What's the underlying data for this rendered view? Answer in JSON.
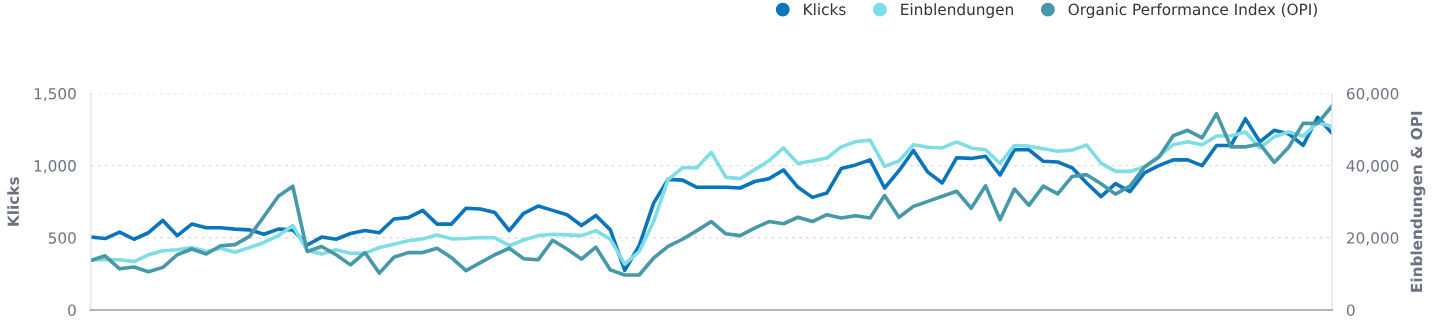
{
  "chart_data": {
    "type": "line",
    "ylabel": "Klicks",
    "y2label": "Einblendungen & OPI",
    "categories": [
      null,
      null,
      null,
      null,
      null,
      null,
      null,
      null,
      null,
      null,
      null,
      null,
      null,
      null,
      null,
      null,
      null,
      null,
      null,
      null,
      null,
      null,
      null,
      null,
      null,
      null,
      null,
      null,
      null,
      null,
      null,
      null,
      null,
      null,
      null,
      null,
      null,
      null,
      null,
      null,
      null,
      null,
      null,
      null,
      null,
      null,
      null,
      null,
      null,
      null,
      null,
      null,
      null,
      null,
      null,
      null,
      null,
      null,
      null,
      null,
      null,
      null,
      null,
      null,
      null,
      null,
      null,
      null,
      null,
      null,
      null,
      null,
      null,
      null,
      null,
      null,
      null,
      null,
      null,
      null,
      null,
      null,
      null,
      null,
      null,
      null,
      null
    ],
    "series": [
      {
        "name": "Klicks",
        "color": "#0a75bd",
        "values": [
          505,
          495,
          540,
          490,
          535,
          620,
          515,
          595,
          570,
          570,
          560,
          555,
          525,
          560,
          555,
          450,
          505,
          490,
          530,
          550,
          535,
          630,
          640,
          690,
          595,
          595,
          705,
          700,
          675,
          550,
          670,
          720,
          690,
          660,
          585,
          655,
          555,
          275,
          445,
          740,
          905,
          900,
          850,
          850,
          850,
          845,
          890,
          910,
          970,
          850,
          780,
          810,
          980,
          1005,
          1040,
          845,
          965,
          1105,
          955,
          880,
          1055,
          1050,
          1065,
          935,
          1110,
          1110,
          1030,
          1025,
          985,
          880,
          785,
          875,
          820,
          950,
          1000,
          1040,
          1040,
          1000,
          1140,
          1140,
          1325,
          1165,
          1245,
          1220,
          1140,
          1335,
          1225
        ]
      },
      {
        "name": "Einblendungen",
        "color": "#7fdde6",
        "axis": "y2",
        "values": [
          13900,
          13900,
          13900,
          13400,
          15300,
          16400,
          16700,
          17300,
          16200,
          17100,
          16000,
          17300,
          18700,
          20600,
          23400,
          16500,
          15500,
          16700,
          15700,
          15700,
          17300,
          18200,
          19200,
          19700,
          20800,
          19700,
          19800,
          20100,
          20000,
          17800,
          19400,
          20600,
          21000,
          20800,
          20600,
          22000,
          19600,
          12700,
          16200,
          24500,
          36100,
          39400,
          39400,
          43700,
          36800,
          36400,
          38900,
          41400,
          44900,
          40600,
          41300,
          42100,
          45200,
          46600,
          47100,
          39800,
          41300,
          45800,
          45100,
          44900,
          46600,
          44900,
          44400,
          40600,
          45600,
          45400,
          44700,
          44000,
          44300,
          45700,
          40700,
          38400,
          38400,
          39600,
          42600,
          45800,
          46600,
          45800,
          48200,
          48300,
          49300,
          44900,
          48000,
          49300,
          48200,
          51900,
          50900
        ]
      },
      {
        "name": "Organic Performance Index (OPI)",
        "color": "#4798a8",
        "axis": "y2",
        "values": [
          13700,
          15000,
          11400,
          11900,
          10600,
          11800,
          15300,
          16900,
          15500,
          17800,
          18100,
          20400,
          25900,
          31500,
          34300,
          16200,
          17600,
          15300,
          12500,
          15900,
          10200,
          14600,
          15900,
          15900,
          17100,
          14500,
          10900,
          13100,
          15300,
          17100,
          14200,
          13900,
          19300,
          16900,
          14100,
          17400,
          11100,
          9700,
          9700,
          14400,
          17600,
          19600,
          22000,
          24500,
          21100,
          20600,
          22700,
          24500,
          23900,
          25700,
          24500,
          26400,
          25500,
          26100,
          25500,
          31700,
          25700,
          28700,
          30100,
          31500,
          32900,
          28200,
          34400,
          25000,
          33500,
          29000,
          34300,
          32200,
          37000,
          37500,
          35000,
          32100,
          34300,
          39600,
          42300,
          48300,
          49800,
          47700,
          54400,
          45200,
          45200,
          46000,
          40900,
          45100,
          51700,
          51700,
          56500
        ]
      }
    ],
    "ylim": [
      0,
      1500
    ],
    "yticks": [
      0,
      500,
      {
        "value": 1000,
        "label": "1,000"
      },
      {
        "value": 1500,
        "label": "1,500"
      }
    ],
    "y2lim": [
      0,
      60000
    ],
    "y2ticks": [
      0,
      {
        "value": 20000,
        "label": "20,000"
      },
      {
        "value": 40000,
        "label": "40,000"
      },
      {
        "value": 60000,
        "label": "60,000"
      }
    ],
    "grid": "y",
    "legend": "top right",
    "marker": "none",
    "line_style": "solid"
  }
}
